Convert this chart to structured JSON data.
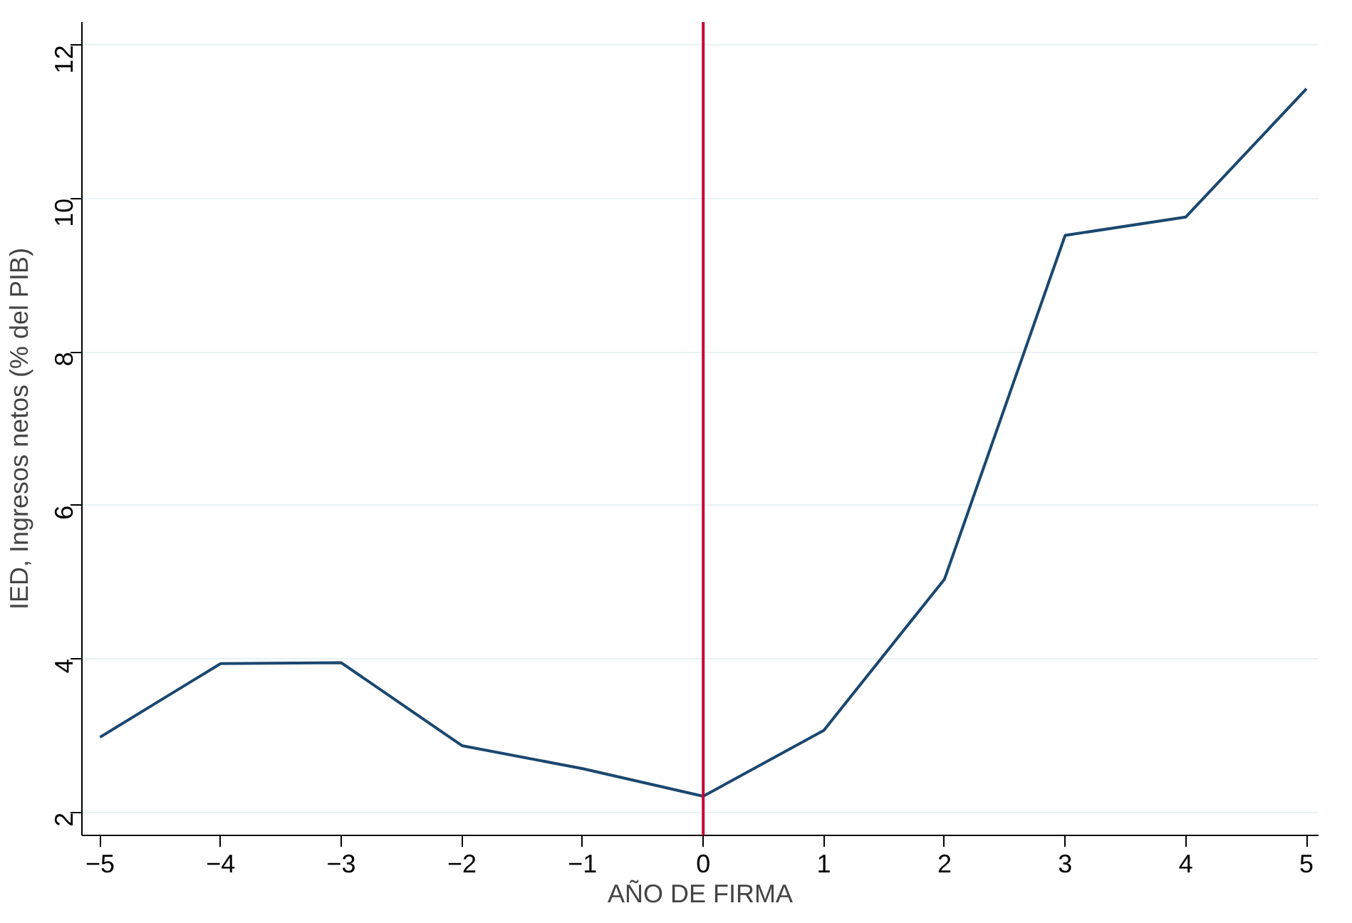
{
  "chart_data": {
    "type": "line",
    "xlabel": "AÑO DE FIRMA",
    "ylabel": "IED, Ingresos netos (% del PIB)",
    "x": [
      -5,
      -4,
      -3,
      -2,
      -1,
      0,
      1,
      2,
      3,
      4,
      5
    ],
    "series": [
      {
        "color": "#1a476f",
        "values": [
          2.98,
          3.94,
          3.95,
          2.87,
          2.57,
          2.21,
          3.07,
          5.04,
          9.52,
          9.76,
          11.43
        ]
      }
    ],
    "xlim": [
      -5.15,
      5.1
    ],
    "ylim": [
      1.7,
      12.3
    ],
    "xticks": [
      -5,
      -4,
      -3,
      -2,
      -1,
      0,
      1,
      2,
      3,
      4,
      5
    ],
    "yticks": [
      2,
      4,
      6,
      8,
      10,
      12
    ],
    "grid": "y",
    "marker": "none",
    "line_style": "solid",
    "ref_lines": [
      {
        "axis": "x",
        "value": 0,
        "color": "#c10534"
      }
    ]
  }
}
